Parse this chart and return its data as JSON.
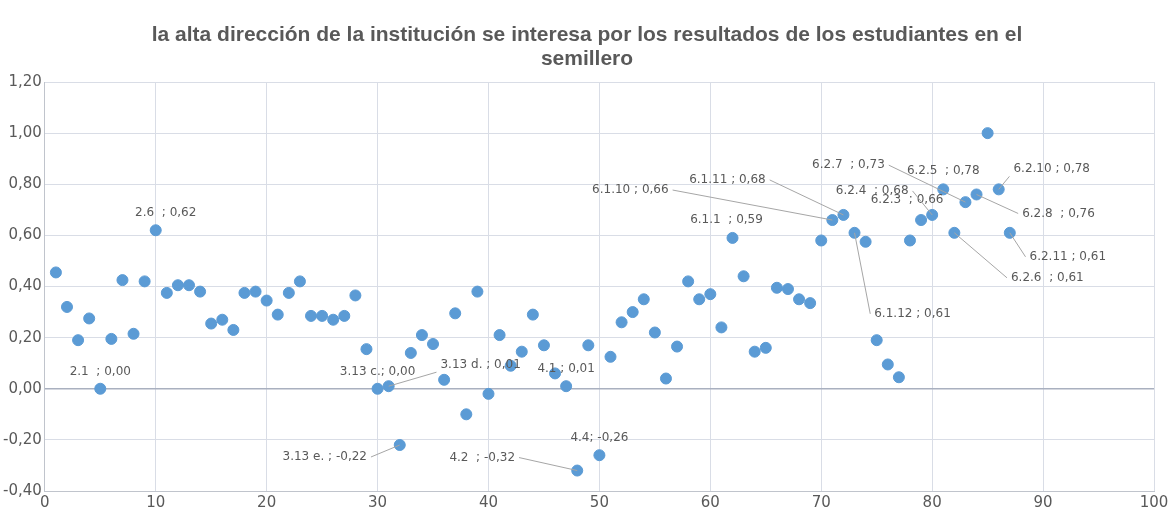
{
  "chart_data": {
    "type": "scatter",
    "title": "la alta dirección de la institución se interesa por los resultados de los estudiantes en el semillero",
    "x": [
      1,
      2,
      3,
      4,
      5,
      6,
      7,
      8,
      9,
      10,
      11,
      12,
      13,
      14,
      15,
      16,
      17,
      18,
      19,
      20,
      21,
      22,
      23,
      24,
      25,
      26,
      27,
      28,
      29,
      30,
      31,
      32,
      33,
      34,
      35,
      36,
      37,
      38,
      39,
      40,
      41,
      42,
      43,
      44,
      45,
      46,
      47,
      48,
      49,
      50,
      51,
      52,
      53,
      54,
      55,
      56,
      57,
      58,
      59,
      60,
      61,
      62,
      63,
      64,
      65,
      66,
      67,
      68,
      69,
      70,
      71,
      72,
      73,
      74,
      75,
      76,
      77,
      78,
      79,
      80,
      81,
      82,
      83,
      84,
      85,
      86,
      87
    ],
    "series": [
      {
        "color": "#5b9bd5",
        "values": [
          0.455,
          0.32,
          0.19,
          0.275,
          0.0,
          0.195,
          0.425,
          0.215,
          0.42,
          0.62,
          0.375,
          0.405,
          0.405,
          0.38,
          0.255,
          0.27,
          0.23,
          0.375,
          0.38,
          0.345,
          0.29,
          0.375,
          0.42,
          0.285,
          0.285,
          0.27,
          0.285,
          0.365,
          0.155,
          0.0,
          0.01,
          -0.22,
          0.14,
          0.21,
          0.175,
          0.035,
          0.295,
          -0.1,
          0.38,
          -0.02,
          0.21,
          0.09,
          0.145,
          0.29,
          0.17,
          0.06,
          0.01,
          -0.32,
          0.17,
          -0.26,
          0.125,
          0.26,
          0.3,
          0.35,
          0.22,
          0.04,
          0.165,
          0.42,
          0.35,
          0.37,
          0.24,
          0.59,
          0.44,
          0.145,
          0.16,
          0.395,
          0.39,
          0.35,
          0.335,
          0.58,
          0.66,
          0.68,
          0.61,
          0.575,
          0.19,
          0.095,
          0.045,
          0.58,
          0.66,
          0.68,
          0.78,
          0.61,
          0.73,
          0.76,
          1.0,
          0.78,
          0.61
        ]
      }
    ],
    "xlim": [
      0,
      100
    ],
    "xticks": [
      0,
      10,
      20,
      30,
      40,
      50,
      60,
      70,
      80,
      90,
      100
    ],
    "ylim": [
      -0.4,
      1.2
    ],
    "yticks": [
      {
        "value": -0.4,
        "label": "-0,40"
      },
      {
        "value": -0.2,
        "label": "-0,20"
      },
      {
        "value": 0,
        "label": "0,00"
      },
      {
        "value": 0.2,
        "label": "0,20"
      },
      {
        "value": 0.4,
        "label": "0,40"
      },
      {
        "value": 0.6,
        "label": "0,60"
      },
      {
        "value": 0.8,
        "label": "0,80"
      },
      {
        "value": 1.0,
        "label": "1,00"
      },
      {
        "value": 1.2,
        "label": "1,20"
      }
    ],
    "grid": true,
    "marker": "circle",
    "annotations": [
      {
        "text": "2.1  ; 0,00",
        "x": 5,
        "y": 0.0
      },
      {
        "text": "2.6  ; 0,62",
        "x": 10,
        "y": 0.62
      },
      {
        "text": "3.13 c.; 0,00",
        "x": 30,
        "y": 0.0
      },
      {
        "text": "3.13 d. ; 0,01",
        "x": 31,
        "y": 0.01
      },
      {
        "text": "3.13 e. ; -0,22",
        "x": 32,
        "y": -0.22
      },
      {
        "text": "4.1 ; 0,01",
        "x": 47,
        "y": 0.01
      },
      {
        "text": "4.2  ; -0,32",
        "x": 48,
        "y": -0.32
      },
      {
        "text": "4.4; -0,26",
        "x": 50,
        "y": -0.26
      },
      {
        "text": "6.1.1  ; 0,59",
        "x": 62,
        "y": 0.59
      },
      {
        "text": "6.1.10 ; 0,66",
        "x": 71,
        "y": 0.66
      },
      {
        "text": "6.1.11 ; 0,68",
        "x": 72,
        "y": 0.68
      },
      {
        "text": "6.1.12 ; 0,61",
        "x": 73,
        "y": 0.61
      },
      {
        "text": "6.2.3  ; 0,66",
        "x": 79,
        "y": 0.66
      },
      {
        "text": "6.2.4  ; 0,68",
        "x": 80,
        "y": 0.68
      },
      {
        "text": "6.2.5  ; 0,78",
        "x": 81,
        "y": 0.78
      },
      {
        "text": "6.2.6  ; 0,61",
        "x": 82,
        "y": 0.61
      },
      {
        "text": "6.2.7  ; 0,73",
        "x": 83,
        "y": 0.73
      },
      {
        "text": "6.2.8  ; 0,76",
        "x": 84,
        "y": 0.76
      },
      {
        "text": "6.2.10 ; 0,78",
        "x": 86,
        "y": 0.78
      },
      {
        "text": "6.2.11 ; 0,61",
        "x": 87,
        "y": 0.61
      }
    ]
  }
}
